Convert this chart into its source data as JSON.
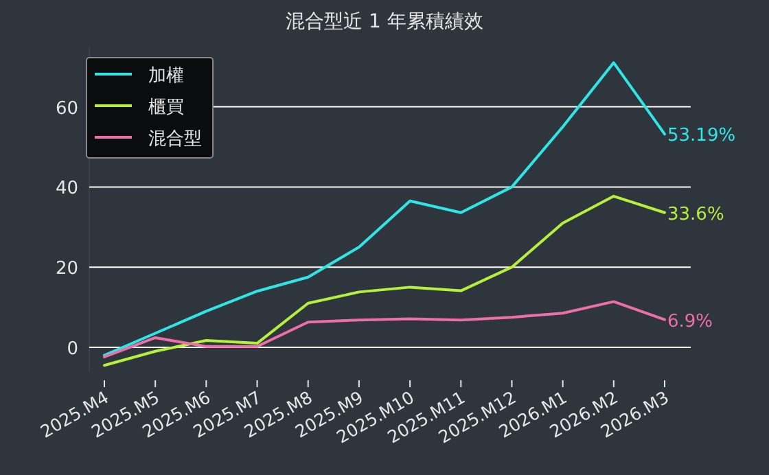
{
  "chart_data": {
    "type": "line",
    "title": "混合型近 1 年累積績效",
    "categories": [
      "2025.M4",
      "2025.M5",
      "2025.M6",
      "2025.M7",
      "2025.M8",
      "2025.M9",
      "2025.M10",
      "2025.M11",
      "2025.M12",
      "2026.M1",
      "2026.M2",
      "2026.M3"
    ],
    "series": [
      {
        "name": "加權",
        "color": "#2ee6e6",
        "values": [
          -2,
          3.5,
          9,
          14,
          17.5,
          25,
          36.5,
          33.6,
          40,
          55,
          71,
          53.19
        ],
        "value_labels": [
          null,
          null,
          null,
          null,
          null,
          null,
          null,
          null,
          null,
          null,
          null,
          "53.19%"
        ]
      },
      {
        "name": "櫃買",
        "color": "#b5f03a",
        "values": [
          -4.5,
          -1,
          1.7,
          1,
          11,
          13.8,
          15,
          14.1,
          20,
          31,
          37.7,
          33.6
        ],
        "value_labels": [
          null,
          null,
          null,
          null,
          null,
          null,
          null,
          null,
          null,
          null,
          null,
          "33.6%"
        ]
      },
      {
        "name": "混合型",
        "color": "#ec6fa8",
        "values": [
          -2.4,
          2.4,
          0.2,
          0.2,
          6.3,
          6.8,
          7.1,
          6.8,
          7.5,
          8.5,
          11.4,
          6.9
        ],
        "value_labels": [
          null,
          null,
          null,
          null,
          null,
          null,
          null,
          null,
          null,
          null,
          null,
          "6.9%"
        ]
      }
    ],
    "ylim": [
      -6,
      75
    ],
    "yticks": [
      0,
      20,
      40,
      60
    ],
    "grid": "y",
    "legend": "top left",
    "marker": "none",
    "line_style": "solid"
  }
}
